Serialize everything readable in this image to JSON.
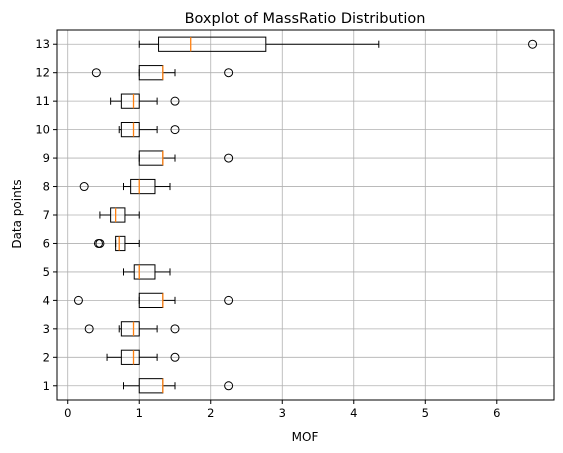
{
  "chart_data": {
    "type": "boxplot",
    "orientation": "horizontal",
    "title": "Boxplot of MassRatio Distribution",
    "xlabel": "MOF",
    "ylabel": "Data points",
    "xlim": [
      -0.15,
      6.8
    ],
    "xticks": [
      0,
      1,
      2,
      3,
      4,
      5,
      6
    ],
    "grid": true,
    "colors": {
      "box": "#000000",
      "median": "#ff7f0e",
      "grid": "#b0b0b0"
    },
    "categories": [
      "1",
      "2",
      "3",
      "4",
      "5",
      "6",
      "7",
      "8",
      "9",
      "10",
      "11",
      "12",
      "13"
    ],
    "boxes": [
      {
        "label": "1",
        "whislo": 0.78,
        "q1": 1.0,
        "med": 1.33,
        "q3": 1.33,
        "whishi": 1.5,
        "fliers": [
          2.25
        ]
      },
      {
        "label": "2",
        "whislo": 0.55,
        "q1": 0.75,
        "med": 0.92,
        "q3": 1.0,
        "whishi": 1.25,
        "fliers": [
          1.5
        ]
      },
      {
        "label": "3",
        "whislo": 0.72,
        "q1": 0.75,
        "med": 0.92,
        "q3": 1.0,
        "whishi": 1.25,
        "fliers": [
          0.3,
          1.5
        ]
      },
      {
        "label": "4",
        "whislo": 1.0,
        "q1": 1.0,
        "med": 1.33,
        "q3": 1.33,
        "whishi": 1.5,
        "fliers": [
          0.15,
          2.25
        ]
      },
      {
        "label": "5",
        "whislo": 0.78,
        "q1": 0.93,
        "med": 1.0,
        "q3": 1.22,
        "whishi": 1.43,
        "fliers": []
      },
      {
        "label": "6",
        "whislo": 0.67,
        "q1": 0.67,
        "med": 0.72,
        "q3": 0.8,
        "whishi": 1.0,
        "fliers": [
          0.43,
          0.45
        ]
      },
      {
        "label": "7",
        "whislo": 0.45,
        "q1": 0.6,
        "med": 0.67,
        "q3": 0.8,
        "whishi": 1.0,
        "fliers": []
      },
      {
        "label": "8",
        "whislo": 0.78,
        "q1": 0.88,
        "med": 1.0,
        "q3": 1.22,
        "whishi": 1.43,
        "fliers": [
          0.23
        ]
      },
      {
        "label": "9",
        "whislo": 1.0,
        "q1": 1.0,
        "med": 1.33,
        "q3": 1.33,
        "whishi": 1.5,
        "fliers": [
          2.25
        ]
      },
      {
        "label": "10",
        "whislo": 0.72,
        "q1": 0.75,
        "med": 0.92,
        "q3": 1.0,
        "whishi": 1.25,
        "fliers": [
          1.5
        ]
      },
      {
        "label": "11",
        "whislo": 0.6,
        "q1": 0.75,
        "med": 0.92,
        "q3": 1.0,
        "whishi": 1.25,
        "fliers": [
          1.5
        ]
      },
      {
        "label": "12",
        "whislo": 1.0,
        "q1": 1.0,
        "med": 1.33,
        "q3": 1.33,
        "whishi": 1.5,
        "fliers": [
          0.4,
          2.25
        ]
      },
      {
        "label": "13",
        "whislo": 1.0,
        "q1": 1.27,
        "med": 1.72,
        "q3": 2.77,
        "whishi": 4.35,
        "fliers": [
          6.5
        ]
      }
    ]
  }
}
